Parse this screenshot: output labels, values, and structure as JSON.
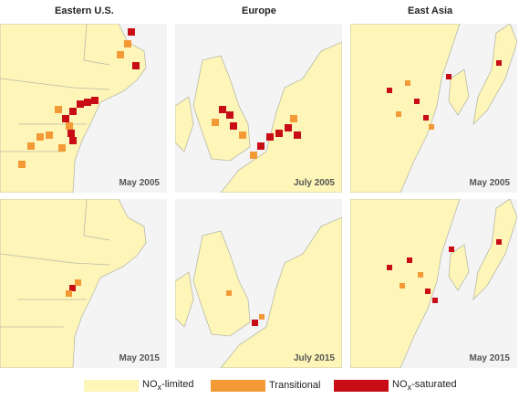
{
  "columns": [
    "Eastern U.S.",
    "Europe",
    "East Asia"
  ],
  "rows": [
    [
      "May 2005",
      "July 2005",
      "May 2005"
    ],
    [
      "May 2015",
      "July 2015",
      "May 2015"
    ]
  ],
  "legend": {
    "limited": {
      "pre": "NO",
      "sub": "x",
      "post": "-limited",
      "color": "#fdf6b8"
    },
    "transitional": {
      "label": "Transitional",
      "color": "#f39a37"
    },
    "saturated": {
      "pre": "NO",
      "sub": "x",
      "post": "-saturated",
      "color": "#c80d16"
    }
  },
  "colors": {
    "land": "#fdf6b8",
    "water": "#f4f4f4",
    "border": "#b9b9a8",
    "red": "#c80d16",
    "orange": "#f39a37"
  }
}
